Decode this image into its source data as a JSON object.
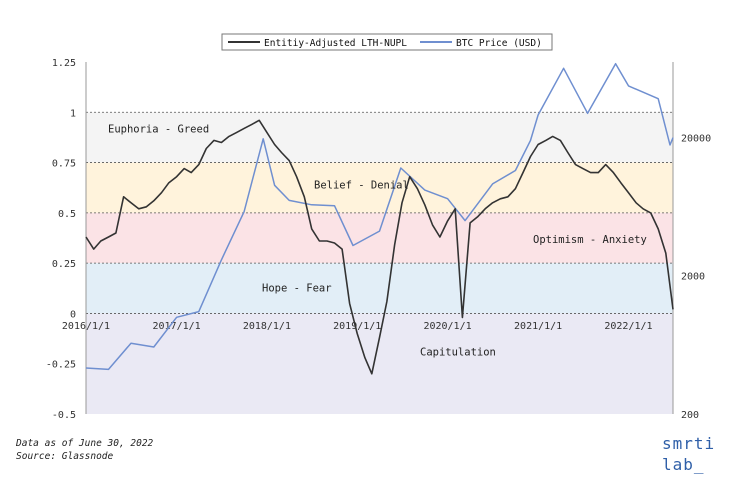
{
  "chart_data": {
    "type": "line",
    "legend": [
      {
        "name": "Entitiy-Adjusted LTH-NUPL",
        "color": "#333333"
      },
      {
        "name": "BTC Price (USD)",
        "color": "#6f8fd0"
      }
    ],
    "legend_placement": "top-center",
    "ylim": [
      -0.5,
      1.25
    ],
    "yticks": [
      "1.25",
      "1",
      "0.75",
      "0.5",
      "0.25",
      "0",
      "-0.25",
      "-0.5"
    ],
    "y2_scale": "log",
    "y2lim": [
      200,
      70000
    ],
    "y2ticks": [
      "20000",
      "2000",
      "200"
    ],
    "xlim": [
      "2016-01-01",
      "2022-06-30"
    ],
    "xticks": [
      "2016/1/1",
      "2017/1/1",
      "2018/1/1",
      "2019/1/1",
      "2020/1/1",
      "2021/1/1",
      "2022/1/1"
    ],
    "grid": false,
    "zones": [
      {
        "label": "Euphoria - Greed",
        "from": 1.0,
        "to": 0.75,
        "color": "#f4f4f4"
      },
      {
        "label": "Belief - Denial",
        "from": 0.75,
        "to": 0.5,
        "color": "#fff3dc"
      },
      {
        "label": "Optimism - Anxiety",
        "from": 0.5,
        "to": 0.25,
        "color": "#fbe3e6"
      },
      {
        "label": "Hope - Fear",
        "from": 0.25,
        "to": 0.0,
        "color": "#e2eef7"
      },
      {
        "label": "Capitulation",
        "from": 0.0,
        "to": -0.5,
        "color": "#eae9f4"
      }
    ],
    "series": [
      {
        "name": "Entitiy-Adjusted LTH-NUPL",
        "x": [
          "2016-01-01",
          "2016-02-01",
          "2016-03-01",
          "2016-04-01",
          "2016-05-01",
          "2016-06-01",
          "2016-07-01",
          "2016-08-01",
          "2016-09-01",
          "2016-10-01",
          "2016-11-01",
          "2016-12-01",
          "2017-01-01",
          "2017-02-01",
          "2017-03-01",
          "2017-04-01",
          "2017-05-01",
          "2017-06-01",
          "2017-07-01",
          "2017-08-01",
          "2017-09-01",
          "2017-10-01",
          "2017-11-01",
          "2017-12-01",
          "2018-01-01",
          "2018-02-01",
          "2018-03-01",
          "2018-04-01",
          "2018-05-01",
          "2018-06-01",
          "2018-07-01",
          "2018-08-01",
          "2018-09-01",
          "2018-10-01",
          "2018-11-01",
          "2018-12-01",
          "2019-01-01",
          "2019-02-01",
          "2019-03-01",
          "2019-04-01",
          "2019-05-01",
          "2019-06-01",
          "2019-07-01",
          "2019-08-01",
          "2019-09-01",
          "2019-10-01",
          "2019-11-01",
          "2019-12-01",
          "2020-01-01",
          "2020-02-01",
          "2020-03-01",
          "2020-04-01",
          "2020-05-01",
          "2020-06-01",
          "2020-07-01",
          "2020-08-01",
          "2020-09-01",
          "2020-10-01",
          "2020-11-01",
          "2020-12-01",
          "2021-01-01",
          "2021-02-01",
          "2021-03-01",
          "2021-04-01",
          "2021-05-01",
          "2021-06-01",
          "2021-07-01",
          "2021-08-01",
          "2021-09-01",
          "2021-10-01",
          "2021-11-01",
          "2021-12-01",
          "2022-01-01",
          "2022-02-01",
          "2022-03-01",
          "2022-04-01",
          "2022-05-01",
          "2022-06-01",
          "2022-06-30"
        ],
        "values": [
          0.38,
          0.32,
          0.36,
          0.38,
          0.4,
          0.58,
          0.55,
          0.52,
          0.53,
          0.56,
          0.6,
          0.65,
          0.68,
          0.72,
          0.7,
          0.74,
          0.82,
          0.86,
          0.85,
          0.88,
          0.9,
          0.92,
          0.94,
          0.96,
          0.9,
          0.84,
          0.8,
          0.76,
          0.68,
          0.58,
          0.42,
          0.36,
          0.36,
          0.35,
          0.32,
          0.05,
          -0.1,
          -0.22,
          -0.3,
          -0.12,
          0.06,
          0.34,
          0.55,
          0.68,
          0.62,
          0.54,
          0.44,
          0.38,
          0.46,
          0.52,
          -0.02,
          0.45,
          0.48,
          0.52,
          0.55,
          0.57,
          0.58,
          0.62,
          0.7,
          0.78,
          0.84,
          0.86,
          0.88,
          0.86,
          0.8,
          0.74,
          0.72,
          0.7,
          0.7,
          0.74,
          0.7,
          0.65,
          0.6,
          0.55,
          0.52,
          0.5,
          0.42,
          0.3,
          0.02
        ]
      },
      {
        "name": "BTC Price (USD)",
        "x": [
          "2016-01-01",
          "2016-04-01",
          "2016-07-01",
          "2016-10-01",
          "2017-01-01",
          "2017-04-01",
          "2017-07-01",
          "2017-10-01",
          "2017-12-17",
          "2018-02-01",
          "2018-04-01",
          "2018-07-01",
          "2018-10-01",
          "2018-12-15",
          "2019-04-01",
          "2019-06-26",
          "2019-10-01",
          "2020-01-01",
          "2020-03-12",
          "2020-07-01",
          "2020-10-01",
          "2020-12-01",
          "2021-01-01",
          "2021-04-14",
          "2021-07-20",
          "2021-11-10",
          "2022-01-01",
          "2022-05-01",
          "2022-06-18",
          "2022-06-30"
        ],
        "values": [
          430,
          420,
          650,
          610,
          1000,
          1100,
          2600,
          5800,
          19500,
          9000,
          7000,
          6500,
          6400,
          3300,
          4200,
          12000,
          8300,
          7200,
          5000,
          9200,
          11500,
          19000,
          29000,
          63000,
          29800,
          68000,
          47000,
          38000,
          17600,
          19900
        ]
      }
    ],
    "footnote": [
      "Data as of June 30, 2022",
      "Source: Glassnode"
    ],
    "brand": [
      "smrti",
      "lab_"
    ]
  }
}
